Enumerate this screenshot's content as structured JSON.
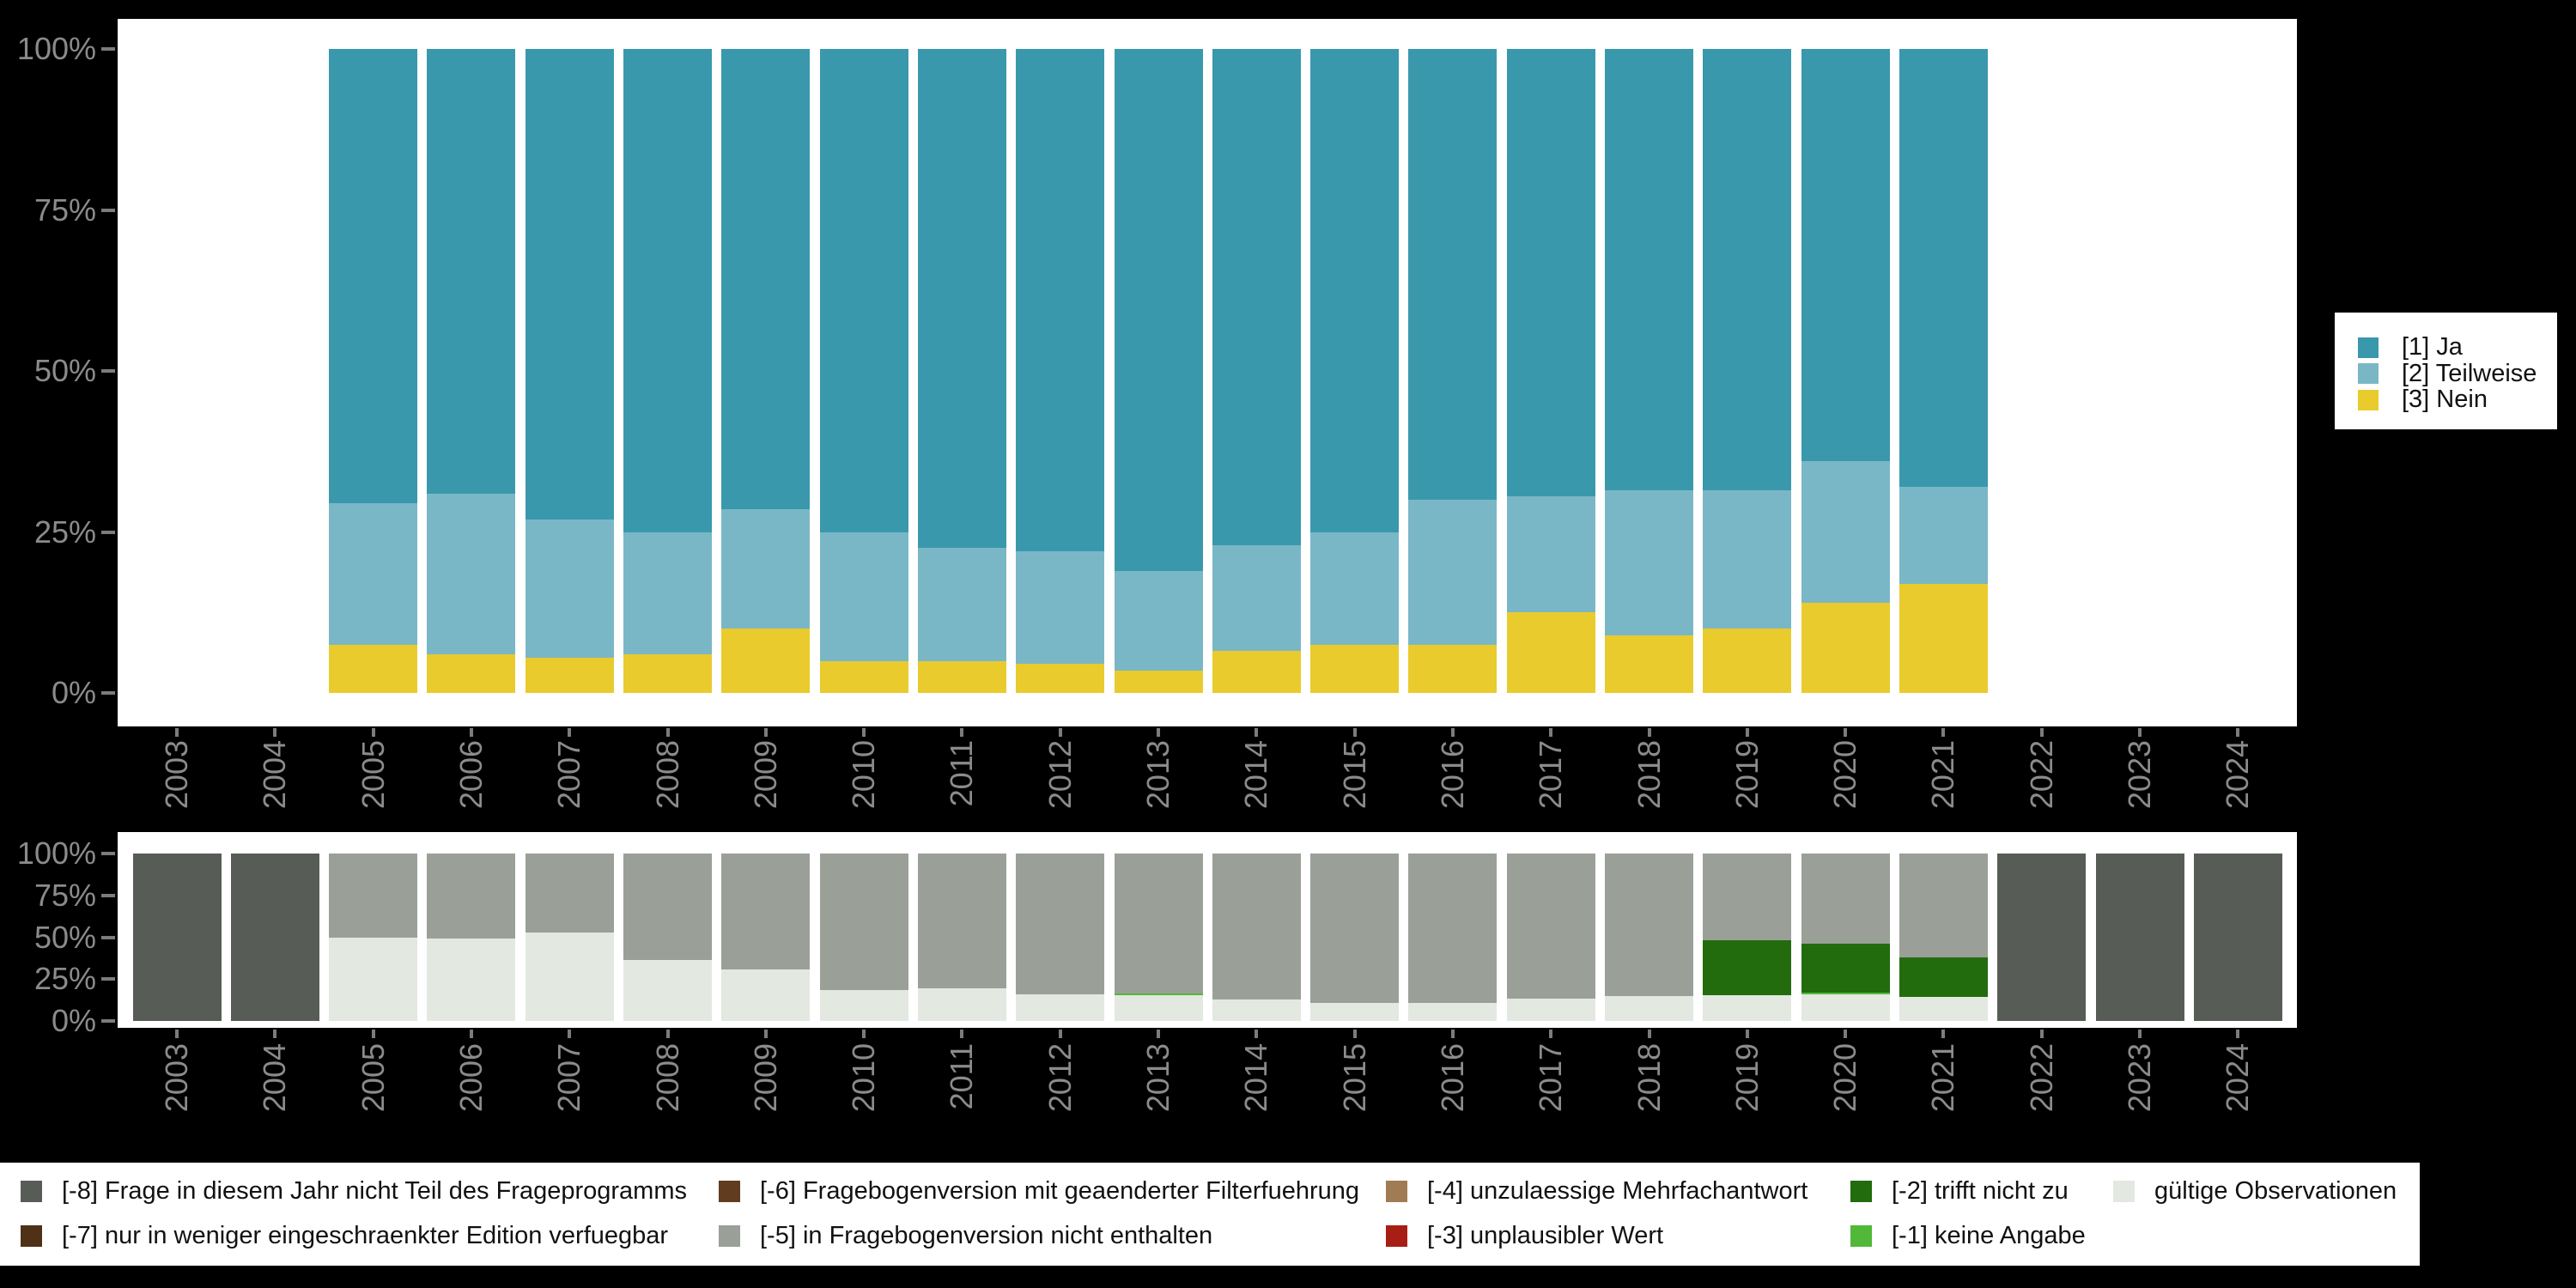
{
  "app": {
    "background": "#000000",
    "panel_background": "#ffffff"
  },
  "palette": {
    "ja": "#3a98ac",
    "teilweise": "#7ab7c6",
    "nein": "#e9cb2d",
    "m8": "#575d56",
    "m7": "#4e3117",
    "m6": "#613c1e",
    "m5": "#9aa098",
    "m4": "#a17b53",
    "m3": "#a81e15",
    "m2": "#226c0e",
    "m1": "#52b838",
    "valid": "#e3e8e1",
    "axis_text": "#8b8b8b",
    "tick": "#7c7c7c"
  },
  "axes": {
    "y_tick_labels": [
      "0%",
      "25%",
      "50%",
      "75%",
      "100%"
    ],
    "y_tick_values": [
      0,
      25,
      50,
      75,
      100
    ],
    "x_tick_labels": [
      "2003",
      "2004",
      "2005",
      "2006",
      "2007",
      "2008",
      "2009",
      "2010",
      "2011",
      "2012",
      "2013",
      "2014",
      "2015",
      "2016",
      "2017",
      "2018",
      "2019",
      "2020",
      "2021",
      "2022",
      "2023",
      "2024"
    ]
  },
  "chart_data": [
    {
      "type": "bar",
      "stacked": true,
      "percent": true,
      "title": "",
      "xlabel": "",
      "ylabel": "",
      "ylim": [
        0,
        100
      ],
      "grid": false,
      "legend_position": "right",
      "categories": [
        2003,
        2004,
        2005,
        2006,
        2007,
        2008,
        2009,
        2010,
        2011,
        2012,
        2013,
        2014,
        2015,
        2016,
        2017,
        2018,
        2019,
        2020,
        2021,
        2022,
        2023,
        2024
      ],
      "series": [
        {
          "name": "[1] Ja",
          "color": "#3a98ac",
          "values": [
            null,
            null,
            70.5,
            69,
            73,
            75,
            71.5,
            75,
            77.5,
            78,
            81,
            77,
            75,
            70,
            69.5,
            68.5,
            68.5,
            64,
            68,
            null,
            null,
            null
          ]
        },
        {
          "name": "[2] Teilweise",
          "color": "#7ab7c6",
          "values": [
            null,
            null,
            22,
            25,
            21.5,
            19,
            18.5,
            20,
            17.5,
            17.5,
            15.5,
            16.5,
            17.5,
            22.5,
            18,
            22.5,
            21.5,
            22,
            15,
            null,
            null,
            null
          ]
        },
        {
          "name": "[3] Nein",
          "color": "#e9cb2d",
          "values": [
            null,
            null,
            7.5,
            6,
            5.5,
            6,
            10,
            5,
            5,
            4.5,
            3.5,
            6.5,
            7.5,
            7.5,
            12.5,
            9,
            10,
            14,
            17,
            null,
            null,
            null
          ]
        }
      ],
      "stack_note": "series stack bottom-to-top in reverse list order"
    },
    {
      "type": "bar",
      "stacked": true,
      "percent": true,
      "title": "",
      "xlabel": "",
      "ylabel": "",
      "ylim": [
        0,
        100
      ],
      "grid": false,
      "legend_position": "bottom",
      "categories": [
        2003,
        2004,
        2005,
        2006,
        2007,
        2008,
        2009,
        2010,
        2011,
        2012,
        2013,
        2014,
        2015,
        2016,
        2017,
        2018,
        2019,
        2020,
        2021,
        2022,
        2023,
        2024
      ],
      "series": [
        {
          "name": "[-8] Frage in diesem Jahr nicht Teil des Frageprogramms",
          "color": "#575d56",
          "values": [
            100,
            100,
            0,
            0,
            0,
            0,
            0,
            0,
            0,
            0,
            0,
            0,
            0,
            0,
            0,
            0,
            0,
            0,
            0,
            100,
            100,
            100
          ]
        },
        {
          "name": "[-7] nur in weniger eingeschraenkter Edition verfuegbar",
          "color": "#4e3117",
          "values": [
            0,
            0,
            0,
            0,
            0,
            0,
            0,
            0,
            0,
            0,
            0,
            0,
            0,
            0,
            0,
            0,
            0,
            0,
            0,
            0,
            0,
            0
          ]
        },
        {
          "name": "[-6] Fragebogenversion mit geaenderter Filterfuehrung",
          "color": "#613c1e",
          "values": [
            0,
            0,
            0,
            0,
            0,
            0,
            0,
            0,
            0,
            0,
            0,
            0,
            0,
            0,
            0,
            0,
            0,
            0,
            0,
            0,
            0,
            0
          ]
        },
        {
          "name": "[-5] in Fragebogenversion nicht enthalten",
          "color": "#9aa098",
          "values": [
            0,
            0,
            50,
            51,
            47,
            63.5,
            69,
            81.5,
            80.5,
            84,
            83.7,
            87,
            89,
            89,
            86.5,
            85,
            52,
            54,
            62,
            0,
            0,
            0
          ]
        },
        {
          "name": "[-4] unzulaessige Mehrfachantwort",
          "color": "#a17b53",
          "values": [
            0,
            0,
            0,
            0,
            0,
            0,
            0,
            0,
            0,
            0,
            0,
            0,
            0,
            0,
            0,
            0,
            0,
            0,
            0,
            0,
            0,
            0
          ]
        },
        {
          "name": "[-3] unplausibler Wert",
          "color": "#a81e15",
          "values": [
            0,
            0,
            0,
            0,
            0,
            0,
            0,
            0,
            0,
            0,
            0,
            0,
            0,
            0,
            0,
            0,
            0,
            0,
            0,
            0,
            0,
            0
          ]
        },
        {
          "name": "[-2] trifft nicht zu",
          "color": "#226c0e",
          "values": [
            0,
            0,
            0,
            0,
            0,
            0,
            0,
            0,
            0,
            0,
            0,
            0,
            0,
            0,
            0,
            0,
            32.5,
            29,
            23.5,
            0,
            0,
            0
          ]
        },
        {
          "name": "[-1] keine Angabe",
          "color": "#52b838",
          "values": [
            0,
            0,
            0,
            0,
            0,
            0,
            0,
            0,
            0,
            0,
            0.8,
            0,
            0,
            0,
            0,
            0,
            0,
            1,
            0,
            0,
            0,
            0
          ]
        },
        {
          "name": "gültige Observationen",
          "color": "#e3e8e1",
          "values": [
            0,
            0,
            50,
            49,
            53,
            36.5,
            31,
            18.5,
            19.5,
            16,
            15.5,
            13,
            11,
            11,
            13.5,
            15,
            15.5,
            16,
            14.5,
            0,
            0,
            0
          ]
        }
      ],
      "stack_note": "series stack bottom-to-top in reverse list order"
    }
  ],
  "legend_top": {
    "items": [
      {
        "label": "[1] Ja",
        "color": "#3a98ac"
      },
      {
        "label": "[2] Teilweise",
        "color": "#7ab7c6"
      },
      {
        "label": "[3] Nein",
        "color": "#e9cb2d"
      }
    ]
  },
  "legend_bottom": {
    "items": [
      {
        "label": "[-8] Frage in diesem Jahr nicht Teil des Frageprogramms",
        "color": "#575d56",
        "col": 0,
        "row": 0
      },
      {
        "label": "[-7] nur in weniger eingeschraenkter Edition verfuegbar",
        "color": "#4e3117",
        "col": 0,
        "row": 1
      },
      {
        "label": "[-6] Fragebogenversion mit geaenderter Filterfuehrung",
        "color": "#613c1e",
        "col": 1,
        "row": 0
      },
      {
        "label": "[-5] in Fragebogenversion nicht enthalten",
        "color": "#9aa098",
        "col": 1,
        "row": 1
      },
      {
        "label": "[-4] unzulaessige Mehrfachantwort",
        "color": "#a17b53",
        "col": 2,
        "row": 0
      },
      {
        "label": "[-3] unplausibler Wert",
        "color": "#a81e15",
        "col": 2,
        "row": 1
      },
      {
        "label": "[-2] trifft nicht zu",
        "color": "#226c0e",
        "col": 3,
        "row": 0
      },
      {
        "label": "[-1] keine Angabe",
        "color": "#52b838",
        "col": 3,
        "row": 1
      },
      {
        "label": "gültige Observationen",
        "color": "#e3e8e1",
        "col": 4,
        "row": 0
      }
    ]
  }
}
